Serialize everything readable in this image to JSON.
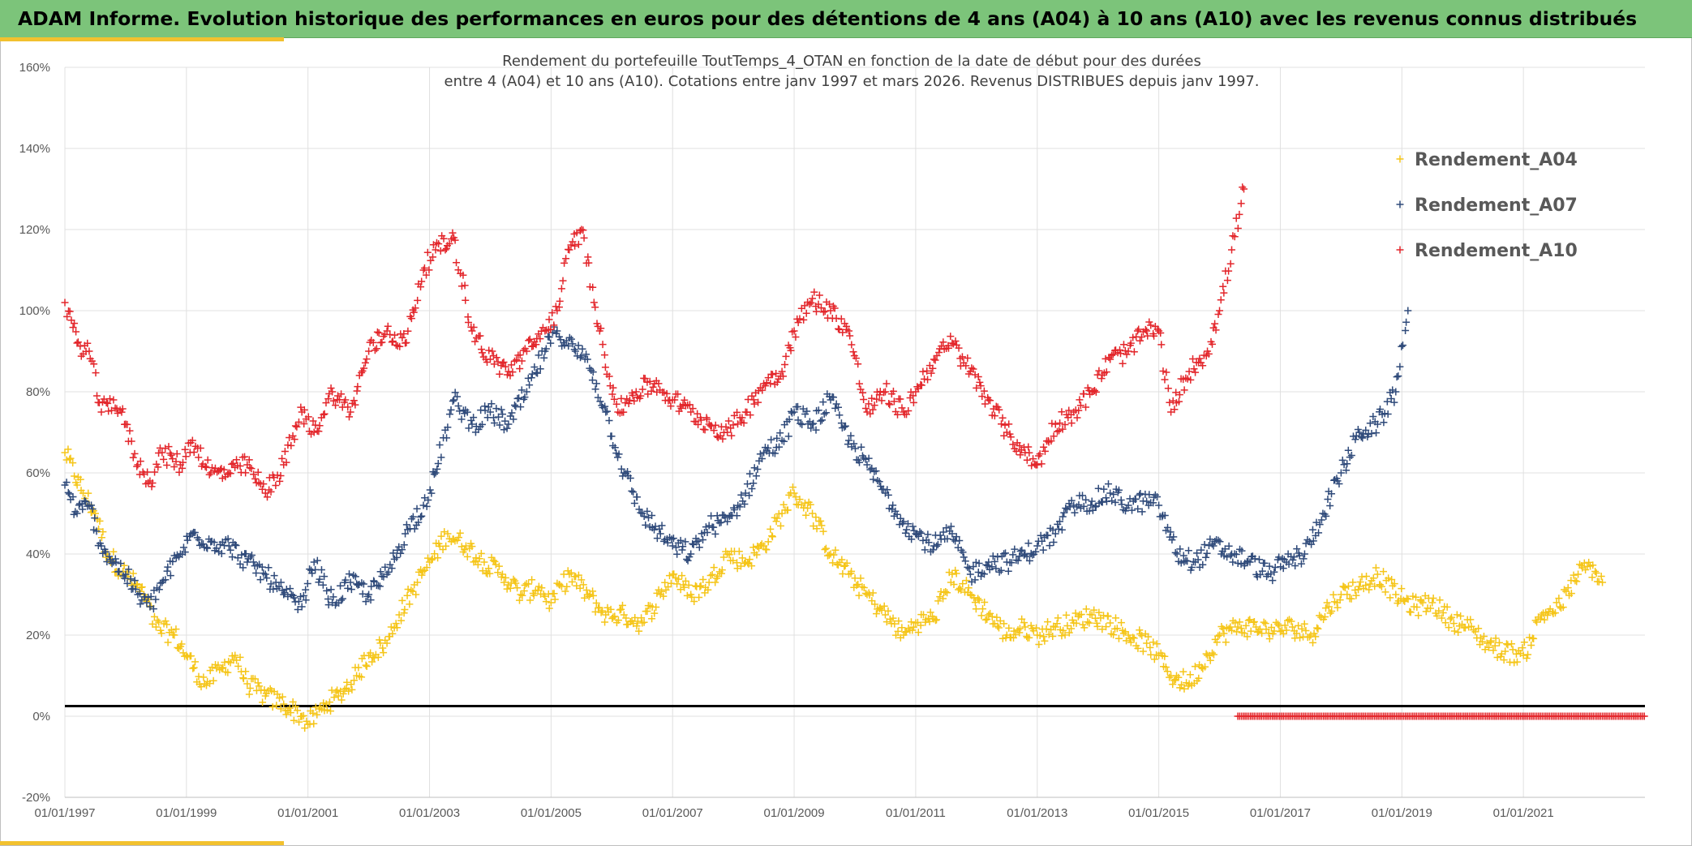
{
  "header": {
    "title": "ADAM Informe. Evolution historique des performances en euros pour des détentions de 4 ans (A04) à 10 ans (A10) avec les revenus connus distribués"
  },
  "colors": {
    "header_bg": "#7cc47a",
    "accent": "#f2c12e",
    "A04": "#f5c518",
    "A07": "#2f4a7a",
    "A10": "#e3262b",
    "zero_line": "#000000",
    "grid": "#e0e0e0"
  },
  "chart_data": {
    "type": "scatter",
    "title_lines": [
      "Rendement du portefeuille ToutTemps_4_OTAN en fonction de la date de début pour des durées",
      "entre 4 (A04) et 10 ans (A10). Cotations entre janv 1997 et mars 2026. Revenus DISTRIBUES depuis janv 1997."
    ],
    "marker": "+",
    "x_unit": "year",
    "xlim": [
      1997.0,
      2023.0
    ],
    "ylim": [
      -20,
      160
    ],
    "y_ticks": [
      -20,
      0,
      20,
      40,
      60,
      80,
      100,
      120,
      140,
      160
    ],
    "y_tick_labels": [
      "-20%",
      "0%",
      "20%",
      "40%",
      "60%",
      "80%",
      "100%",
      "120%",
      "140%",
      "160%"
    ],
    "x_ticks": [
      1997,
      1999,
      2001,
      2003,
      2005,
      2007,
      2009,
      2011,
      2013,
      2015,
      2017,
      2019,
      2021
    ],
    "x_tick_labels": [
      "01/01/1997",
      "01/01/1999",
      "01/01/2001",
      "01/01/2003",
      "01/01/2005",
      "01/01/2007",
      "01/01/2009",
      "01/01/2011",
      "01/01/2013",
      "01/01/2015",
      "01/01/2017",
      "01/01/2019",
      "01/01/2021"
    ],
    "reference_line_y": 2.5,
    "grid": true,
    "legend_position": "top-right",
    "series": [
      {
        "name": "Rendement_A04",
        "color_key": "A04",
        "x": [
          1997.0,
          1997.3,
          1997.5,
          1997.7,
          1998.0,
          1998.3,
          1998.5,
          1998.8,
          1999.0,
          1999.3,
          1999.6,
          1999.8,
          2000.0,
          2000.3,
          2000.6,
          2000.9,
          2001.0,
          2001.3,
          2001.5,
          2001.8,
          2002.0,
          2002.3,
          2002.5,
          2002.8,
          2003.0,
          2003.3,
          2003.6,
          2003.9,
          2004.2,
          2004.5,
          2004.8,
          2005.0,
          2005.3,
          2005.6,
          2005.9,
          2006.2,
          2006.5,
          2006.8,
          2007.0,
          2007.3,
          2007.6,
          2007.9,
          2008.2,
          2008.5,
          2008.8,
          2009.0,
          2009.3,
          2009.6,
          2009.9,
          2010.2,
          2010.5,
          2010.8,
          2011.0,
          2011.3,
          2011.6,
          2011.9,
          2012.2,
          2012.5,
          2012.8,
          2013.0,
          2013.3,
          2013.6,
          2013.9,
          2014.2,
          2014.5,
          2014.8,
          2015.0,
          2015.2,
          2015.5,
          2015.8,
          2016.0,
          2016.3,
          2016.6,
          2016.9,
          2017.2,
          2017.5,
          2017.8,
          2018.0,
          2018.3,
          2018.6,
          2018.9,
          2019.2,
          2019.5,
          2019.8,
          2020.1,
          2020.4,
          2020.7,
          2021.0,
          2021.3,
          2021.6,
          2021.9,
          2022.1,
          2022.3
        ],
        "y": [
          65,
          55,
          50,
          40,
          35,
          30,
          22,
          20,
          15,
          8,
          12,
          15,
          8,
          5,
          3,
          0,
          -2,
          3,
          5,
          10,
          15,
          18,
          25,
          33,
          38,
          45,
          42,
          38,
          35,
          30,
          32,
          28,
          35,
          30,
          25,
          25,
          23,
          30,
          35,
          30,
          33,
          40,
          38,
          42,
          50,
          55,
          50,
          40,
          35,
          30,
          25,
          20,
          23,
          24,
          35,
          30,
          25,
          20,
          22,
          20,
          22,
          23,
          25,
          23,
          20,
          18,
          15,
          10,
          8,
          15,
          20,
          22,
          22,
          21,
          22,
          20,
          27,
          30,
          32,
          35,
          30,
          27,
          28,
          24,
          22,
          18,
          16,
          15,
          25,
          27,
          35,
          37,
          33
        ]
      },
      {
        "name": "Rendement_A07",
        "color_key": "A07",
        "x": [
          1997.0,
          1997.2,
          1997.4,
          1997.6,
          1997.8,
          1998.0,
          1998.2,
          1998.4,
          1998.6,
          1998.9,
          1999.1,
          1999.4,
          1999.7,
          2000.0,
          2000.3,
          2000.6,
          2000.9,
          2001.1,
          2001.4,
          2001.7,
          2002.0,
          2002.3,
          2002.6,
          2002.9,
          2003.1,
          2003.4,
          2003.7,
          2004.0,
          2004.3,
          2004.6,
          2004.9,
          2005.1,
          2005.4,
          2005.6,
          2005.9,
          2006.2,
          2006.5,
          2006.8,
          2007.0,
          2007.3,
          2007.6,
          2007.9,
          2008.2,
          2008.5,
          2008.8,
          2009.0,
          2009.3,
          2009.6,
          2009.9,
          2010.2,
          2010.5,
          2010.8,
          2011.0,
          2011.3,
          2011.6,
          2011.9,
          2012.2,
          2012.5,
          2012.8,
          2013.0,
          2013.3,
          2013.6,
          2013.9,
          2014.2,
          2014.5,
          2014.8,
          2015.0,
          2015.3,
          2015.6,
          2015.9,
          2016.2,
          2016.5,
          2016.8,
          2017.1,
          2017.4,
          2017.7,
          2018.0,
          2018.3,
          2018.6,
          2018.9,
          2019.1
        ],
        "y": [
          57,
          50,
          52,
          42,
          38,
          35,
          30,
          27,
          33,
          40,
          45,
          43,
          42,
          38,
          35,
          30,
          27,
          38,
          28,
          33,
          30,
          35,
          45,
          52,
          60,
          78,
          72,
          75,
          72,
          80,
          90,
          95,
          90,
          88,
          75,
          60,
          50,
          45,
          42,
          40,
          47,
          48,
          55,
          65,
          68,
          75,
          72,
          78,
          68,
          62,
          55,
          48,
          45,
          42,
          45,
          35,
          38,
          38,
          40,
          42,
          45,
          52,
          53,
          55,
          52,
          53,
          52,
          40,
          38,
          42,
          40,
          38,
          35,
          38,
          40,
          50,
          60,
          70,
          72,
          80,
          100
        ]
      },
      {
        "name": "Rendement_A10",
        "color_key": "A10",
        "x": [
          1997.0,
          1997.2,
          1997.4,
          1997.6,
          1997.8,
          1998.0,
          1998.2,
          1998.4,
          1998.6,
          1998.9,
          1999.1,
          1999.4,
          1999.7,
          2000.0,
          2000.3,
          2000.6,
          2000.9,
          2001.1,
          2001.4,
          2001.7,
          2002.0,
          2002.3,
          2002.6,
          2002.9,
          2003.1,
          2003.4,
          2003.7,
          2004.0,
          2004.3,
          2004.6,
          2004.9,
          2005.1,
          2005.3,
          2005.5,
          2005.8,
          2006.1,
          2006.4,
          2006.7,
          2007.0,
          2007.3,
          2007.6,
          2007.9,
          2008.2,
          2008.5,
          2008.8,
          2009.0,
          2009.3,
          2009.6,
          2009.9,
          2010.2,
          2010.5,
          2010.8,
          2011.0,
          2011.3,
          2011.6,
          2011.9,
          2012.2,
          2012.5,
          2012.8,
          2013.0,
          2013.3,
          2013.6,
          2013.9,
          2014.2,
          2014.5,
          2014.8,
          2015.0,
          2015.2,
          2015.5,
          2015.8,
          2016.0,
          2016.2,
          2016.4
        ],
        "y": [
          102,
          92,
          90,
          75,
          78,
          72,
          62,
          58,
          65,
          62,
          68,
          60,
          60,
          62,
          55,
          62,
          75,
          70,
          80,
          75,
          90,
          95,
          92,
          110,
          115,
          118,
          95,
          88,
          85,
          90,
          95,
          100,
          115,
          120,
          95,
          75,
          80,
          82,
          78,
          75,
          72,
          70,
          75,
          82,
          85,
          95,
          103,
          100,
          95,
          75,
          80,
          75,
          80,
          88,
          92,
          85,
          78,
          70,
          65,
          62,
          72,
          75,
          80,
          88,
          90,
          95,
          95,
          75,
          85,
          90,
          100,
          115,
          130
        ]
      }
    ],
    "zero_marker_series": {
      "name": "Rendement_A10",
      "color_key": "A10",
      "y": 0,
      "x_start": 2016.3,
      "x_end": 2023.0
    },
    "legend": [
      "Rendement_A04",
      "Rendement_A07",
      "Rendement_A10"
    ]
  }
}
